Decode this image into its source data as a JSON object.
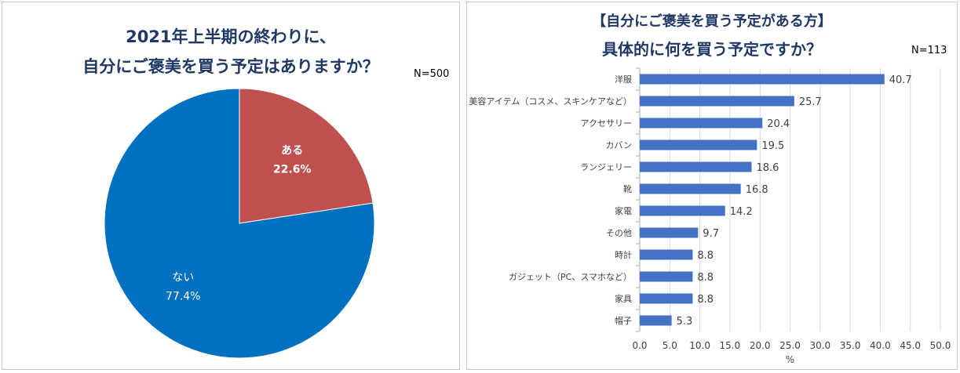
{
  "colors": {
    "pie_yes": "#C0504D",
    "pie_no": "#0070C0",
    "bar": "#4472C4",
    "title": "#1F3864",
    "axis_text": "#404040",
    "grid": "#D9D9D9"
  },
  "left": {
    "title_line1": "2021年上半期の終わりに、",
    "title_line2": "自分にご褒美を買う予定はありますか？",
    "n_label": "N=500"
  },
  "right": {
    "title_line1": "【自分にご褒美を買う予定がある方】",
    "title_line2": "具体的に何を買う予定ですか？",
    "n_label": "N=113"
  },
  "chart_data": [
    {
      "type": "pie",
      "title": "2021年上半期の終わりに、自分にご褒美を買う予定はありますか？",
      "labels": [
        "ある",
        "ない"
      ],
      "values": [
        22.6,
        77.4
      ],
      "value_labels": [
        "22.6%",
        "77.4%"
      ],
      "colors": [
        "#C0504D",
        "#0070C0"
      ],
      "start_angle_deg": 0,
      "direction": "clockwise"
    },
    {
      "type": "bar",
      "orientation": "horizontal",
      "title": "【自分にご褒美を買う予定がある方】具体的に何を買う予定ですか？",
      "categories": [
        "洋服",
        "美容アイテム（コスメ、スキンケアなど）",
        "アクセサリー",
        "カバン",
        "ランジェリー",
        "靴",
        "家電",
        "その他",
        "時計",
        "ガジェット（PC、スマホなど）",
        "家具",
        "帽子"
      ],
      "values": [
        40.7,
        25.7,
        20.4,
        19.5,
        18.6,
        16.8,
        14.2,
        9.7,
        8.8,
        8.8,
        8.8,
        5.3
      ],
      "value_labels": [
        "40.7",
        "25.7",
        "20.4",
        "19.5",
        "18.6",
        "16.8",
        "14.2",
        "9.7",
        "8.8",
        "8.8",
        "8.8",
        "5.3"
      ],
      "xlabel": "%",
      "xlim": [
        0,
        50
      ],
      "xticks": [
        "0.0",
        "5.0",
        "10.0",
        "15.0",
        "20.0",
        "25.0",
        "30.0",
        "35.0",
        "40.0",
        "45.0",
        "50.0"
      ],
      "grid": "vertical",
      "color": "#4472C4"
    }
  ]
}
